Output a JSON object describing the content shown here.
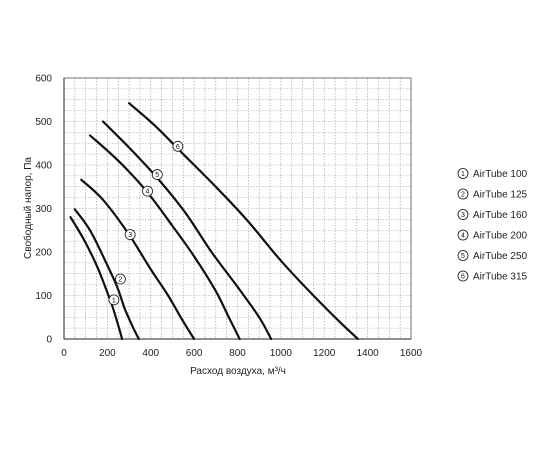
{
  "chart_data": {
    "type": "line",
    "title": "",
    "xlabel": "Расход  воздуха, м³/ч",
    "ylabel": "Свободный напор, Па",
    "xlim": [
      0,
      1600
    ],
    "ylim": [
      0,
      600
    ],
    "x_ticks": [
      "0",
      "200",
      "400",
      "600",
      "800",
      "1000",
      "1200",
      "1400",
      "1600"
    ],
    "y_ticks": [
      "0",
      "100",
      "200",
      "300",
      "400",
      "500",
      "600"
    ],
    "grid": true,
    "legend_position": "right",
    "series": [
      {
        "name": "AirTube 100",
        "marker": "1",
        "points": [
          [
            30,
            280
          ],
          [
            90,
            230
          ],
          [
            150,
            170
          ],
          [
            190,
            120
          ],
          [
            220,
            80
          ],
          [
            245,
            40
          ],
          [
            268,
            0
          ]
        ]
      },
      {
        "name": "AirTube 125",
        "marker": "2",
        "points": [
          [
            50,
            298
          ],
          [
            120,
            250
          ],
          [
            190,
            180
          ],
          [
            245,
            120
          ],
          [
            280,
            70
          ],
          [
            315,
            30
          ],
          [
            345,
            0
          ]
        ]
      },
      {
        "name": "AirTube 160",
        "marker": "3",
        "points": [
          [
            80,
            366
          ],
          [
            180,
            320
          ],
          [
            300,
            240
          ],
          [
            400,
            160
          ],
          [
            480,
            100
          ],
          [
            550,
            40
          ],
          [
            600,
            0
          ]
        ]
      },
      {
        "name": "AirTube 200",
        "marker": "4",
        "points": [
          [
            120,
            468
          ],
          [
            250,
            410
          ],
          [
            380,
            340
          ],
          [
            500,
            260
          ],
          [
            600,
            190
          ],
          [
            700,
            110
          ],
          [
            760,
            50
          ],
          [
            810,
            0
          ]
        ]
      },
      {
        "name": "AirTube 250",
        "marker": "5",
        "points": [
          [
            180,
            500
          ],
          [
            300,
            440
          ],
          [
            430,
            370
          ],
          [
            560,
            290
          ],
          [
            680,
            200
          ],
          [
            800,
            120
          ],
          [
            900,
            50
          ],
          [
            955,
            0
          ]
        ]
      },
      {
        "name": "AirTube 315",
        "marker": "6",
        "points": [
          [
            300,
            542
          ],
          [
            420,
            490
          ],
          [
            560,
            420
          ],
          [
            700,
            350
          ],
          [
            850,
            270
          ],
          [
            1000,
            180
          ],
          [
            1150,
            100
          ],
          [
            1270,
            40
          ],
          [
            1355,
            0
          ]
        ]
      }
    ],
    "marker_positions": [
      {
        "series": 0,
        "x": 230,
        "y": 90
      },
      {
        "series": 1,
        "x": 260,
        "y": 138
      },
      {
        "series": 2,
        "x": 305,
        "y": 240
      },
      {
        "series": 3,
        "x": 385,
        "y": 340
      },
      {
        "series": 4,
        "x": 430,
        "y": 378
      },
      {
        "series": 5,
        "x": 525,
        "y": 443
      }
    ],
    "line_color": "#111111",
    "grid_color": "#9a9a9a"
  }
}
